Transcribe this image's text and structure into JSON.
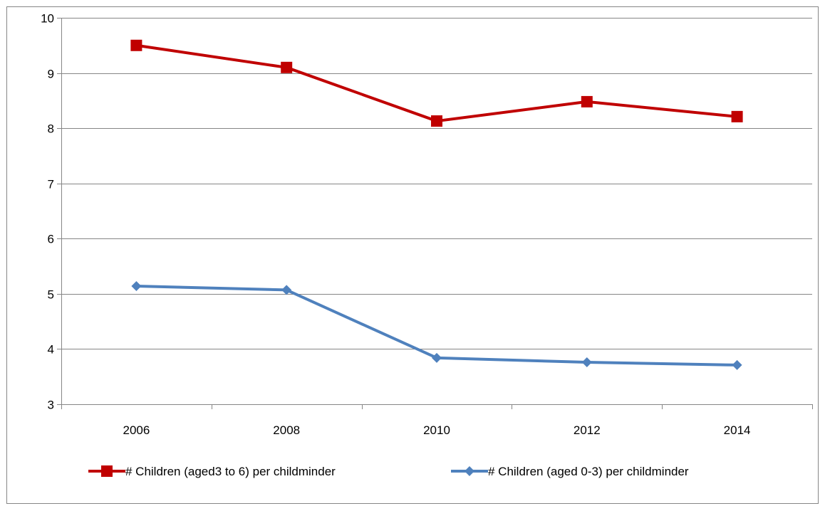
{
  "chart_data": {
    "type": "line",
    "title": "",
    "xlabel": "",
    "ylabel": "",
    "categories": [
      "2006",
      "2008",
      "2010",
      "2012",
      "2014"
    ],
    "ylim": [
      3,
      10
    ],
    "yticks": [
      3,
      4,
      5,
      6,
      7,
      8,
      9,
      10
    ],
    "grid": true,
    "legend": "bottom",
    "series": [
      {
        "name": "# Children (aged3 to 6) per childminder",
        "values": [
          9.5,
          9.1,
          8.13,
          8.48,
          8.21
        ],
        "color": "#C00000",
        "marker": "square"
      },
      {
        "name": "# Children (aged 0-3) per childminder",
        "values": [
          5.14,
          5.07,
          3.84,
          3.76,
          3.71
        ],
        "color": "#4F81BD",
        "marker": "diamond"
      }
    ]
  }
}
